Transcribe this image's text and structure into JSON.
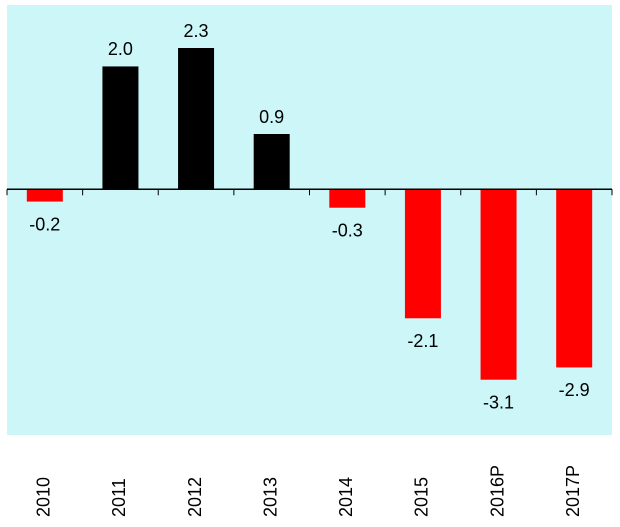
{
  "chart_data": {
    "type": "bar",
    "categories": [
      "2010",
      "2011",
      "2012",
      "2013",
      "2014",
      "2015",
      "2016P",
      "2017P"
    ],
    "values": [
      -0.2,
      2.0,
      2.3,
      0.9,
      -0.3,
      -2.1,
      -3.1,
      -2.9
    ],
    "value_labels": [
      "-0.2",
      "2.0",
      "2.3",
      "0.9",
      "-0.3",
      "-2.1",
      "-3.1",
      "-2.9"
    ],
    "colors": [
      "#ff0000",
      "#000000",
      "#000000",
      "#000000",
      "#ff0000",
      "#ff0000",
      "#ff0000",
      "#ff0000"
    ],
    "background": "#ccf6f8",
    "ylim": [
      -4,
      3
    ]
  }
}
